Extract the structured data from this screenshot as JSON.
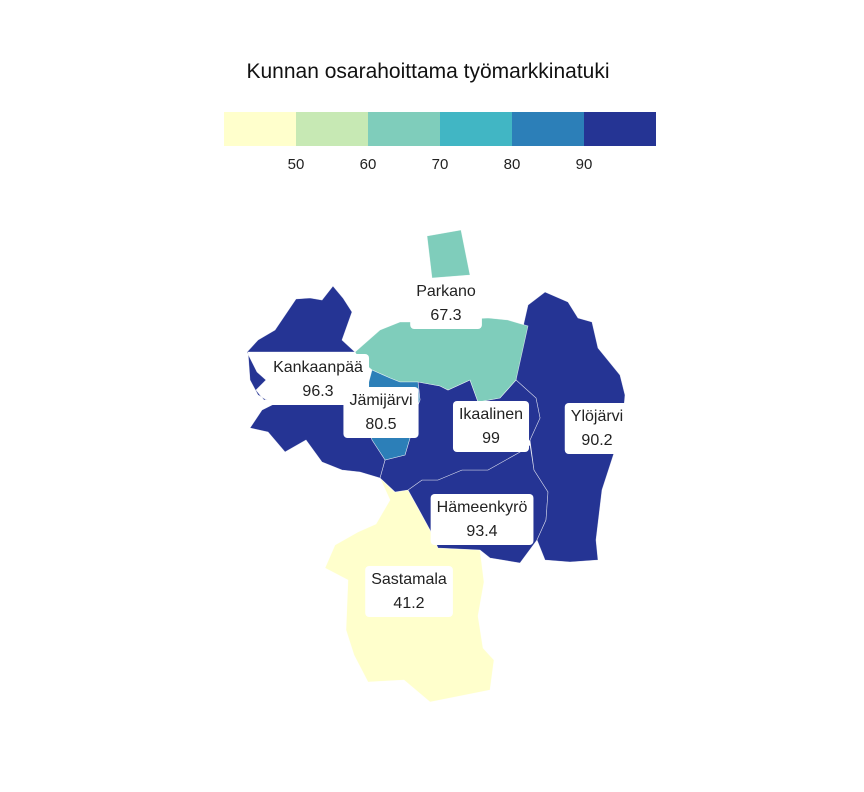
{
  "title": "Kunnan osarahoittama työmarkkinatuki",
  "legend": {
    "colors": [
      "#ffffcc",
      "#c7e9b4",
      "#7fcdbb",
      "#41b6c4",
      "#2c7fb8",
      "#253494"
    ],
    "ticks": [
      "50",
      "60",
      "70",
      "80",
      "90"
    ]
  },
  "municipalities": [
    {
      "id": "parkano",
      "name": "Parkano",
      "value": "67.3",
      "color": "#7fcdbb"
    },
    {
      "id": "kankaanpaa",
      "name": "Kankaanpää",
      "value": "96.3",
      "color": "#253494"
    },
    {
      "id": "jamijarvi",
      "name": "Jämijärvi",
      "value": "80.5",
      "color": "#2c7fb8"
    },
    {
      "id": "ikaalinen",
      "name": "Ikaalinen",
      "value": "99",
      "color": "#253494"
    },
    {
      "id": "ylojarvi",
      "name": "Ylöjärvi",
      "value": "90.2",
      "color": "#253494"
    },
    {
      "id": "hameenkyro",
      "name": "Hämeenkyrö",
      "value": "93.4",
      "color": "#253494"
    },
    {
      "id": "sastamala",
      "name": "Sastamala",
      "value": "41.2",
      "color": "#ffffcc"
    }
  ]
}
